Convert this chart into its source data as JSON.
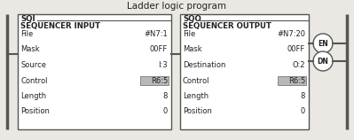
{
  "title": "Ladder logic program",
  "title_fontsize": 7.5,
  "bg_color": "#ebe8e3",
  "box_edge_color": "#555555",
  "highlight_color": "#b8b8b8",
  "text_color": "#222222",
  "sqi_label": "SQI",
  "sqi_subtitle": "SEQUENCER INPUT",
  "sqi_rows": [
    [
      "File",
      "#N7:1"
    ],
    [
      "Mask",
      "00FF"
    ],
    [
      "Source",
      "I:3"
    ],
    [
      "Control",
      "R6:5"
    ],
    [
      "Length",
      "8"
    ],
    [
      "Position",
      "0"
    ]
  ],
  "sqo_label": "SQO",
  "sqo_subtitle": "SEQUENCER OUTPUT",
  "sqo_rows": [
    [
      "File",
      "#N7:20"
    ],
    [
      "Mask",
      "00FF"
    ],
    [
      "Destination",
      "O:2"
    ],
    [
      "Control",
      "R6:5"
    ],
    [
      "Length",
      "8"
    ],
    [
      "Position",
      "0"
    ]
  ],
  "control_highlight_row": 3,
  "en_label": "EN",
  "dn_label": "DN",
  "figsize": [
    3.99,
    1.58
  ],
  "dpi": 100
}
